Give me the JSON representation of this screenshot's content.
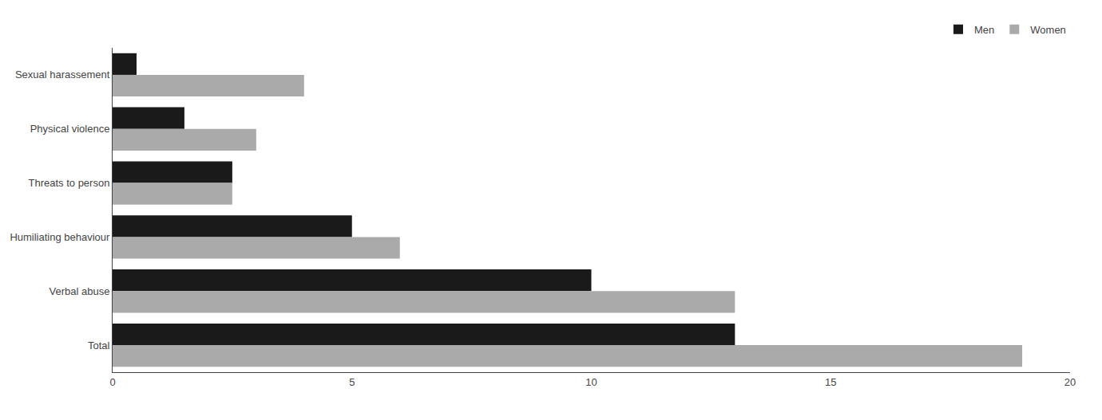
{
  "chart_data": {
    "type": "bar",
    "orientation": "horizontal",
    "categories": [
      "Sexual harassement",
      "Physical violence",
      "Threats to person",
      "Humiliating behaviour",
      "Verbal abuse",
      "Total"
    ],
    "series": [
      {
        "name": "Men",
        "color": "#1a1a1a",
        "values": [
          0.5,
          1.5,
          2.5,
          5.0,
          10.0,
          13.0
        ]
      },
      {
        "name": "Women",
        "color": "#aaaaaa",
        "values": [
          4.0,
          3.0,
          2.5,
          6.0,
          13.0,
          19.0
        ]
      }
    ],
    "xlim": [
      0,
      20
    ],
    "xticks": [
      0,
      5,
      10,
      15,
      20
    ],
    "grid": false,
    "legend": "upper right"
  }
}
